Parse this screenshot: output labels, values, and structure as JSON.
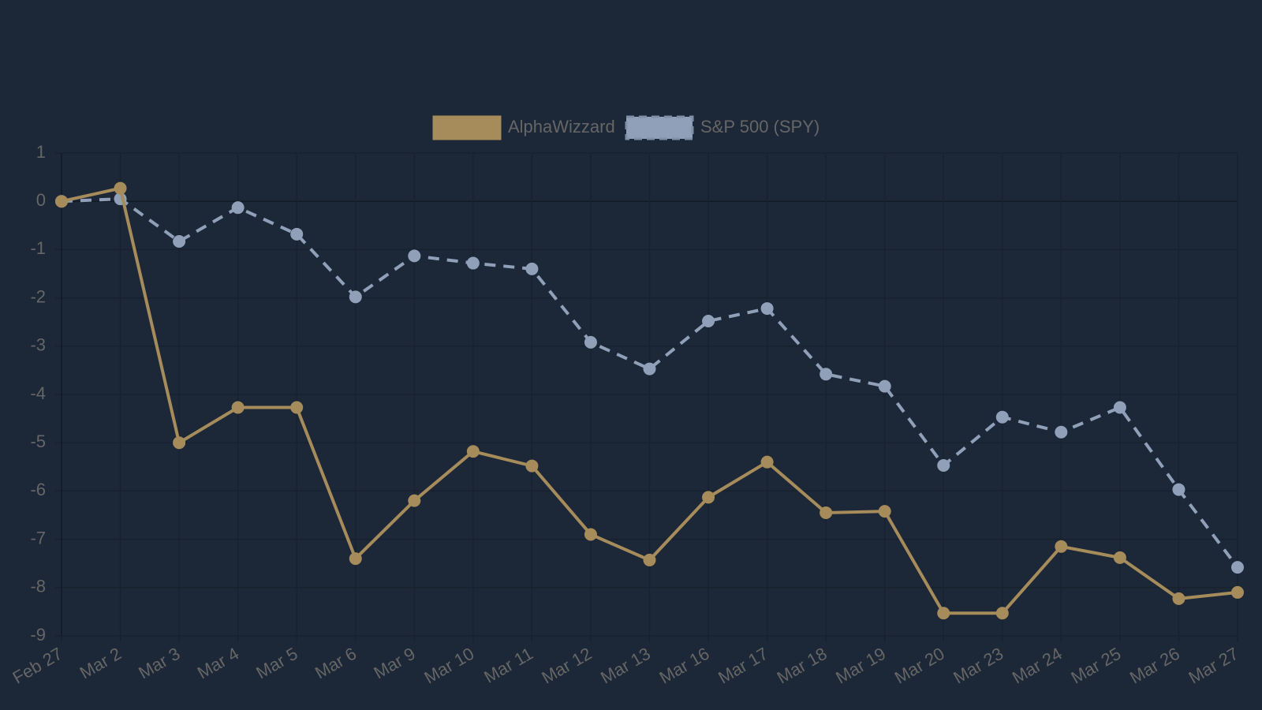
{
  "chart_data": {
    "type": "line",
    "categories": [
      "Feb 27",
      "Mar 2",
      "Mar 3",
      "Mar 4",
      "Mar 5",
      "Mar 6",
      "Mar 9",
      "Mar 10",
      "Mar 11",
      "Mar 12",
      "Mar 13",
      "Mar 16",
      "Mar 17",
      "Mar 18",
      "Mar 19",
      "Mar 20",
      "Mar 23",
      "Mar 24",
      "Mar 25",
      "Mar 26",
      "Mar 27"
    ],
    "series": [
      {
        "name": "AlphaWizzard",
        "color": "#a68b5b",
        "dashed": false,
        "values": [
          0,
          0.27,
          -5.0,
          -4.27,
          -4.27,
          -7.4,
          -6.2,
          -5.18,
          -5.48,
          -6.9,
          -7.43,
          -6.13,
          -5.4,
          -6.45,
          -6.42,
          -8.53,
          -8.53,
          -7.15,
          -7.38,
          -8.23,
          -8.1
        ]
      },
      {
        "name": "S&P 500 (SPY)",
        "color": "#8fa0b8",
        "dashed": true,
        "values": [
          0,
          0.05,
          -0.83,
          -0.13,
          -0.68,
          -1.98,
          -1.13,
          -1.28,
          -1.4,
          -2.92,
          -3.47,
          -2.48,
          -2.22,
          -3.58,
          -3.83,
          -5.47,
          -4.47,
          -4.78,
          -4.27,
          -5.97,
          -7.58
        ]
      }
    ],
    "ylim": [
      -9,
      1
    ],
    "yticks": [
      1,
      0,
      -1,
      -2,
      -3,
      -4,
      -5,
      -6,
      -7,
      -8,
      -9
    ],
    "grid": true
  }
}
